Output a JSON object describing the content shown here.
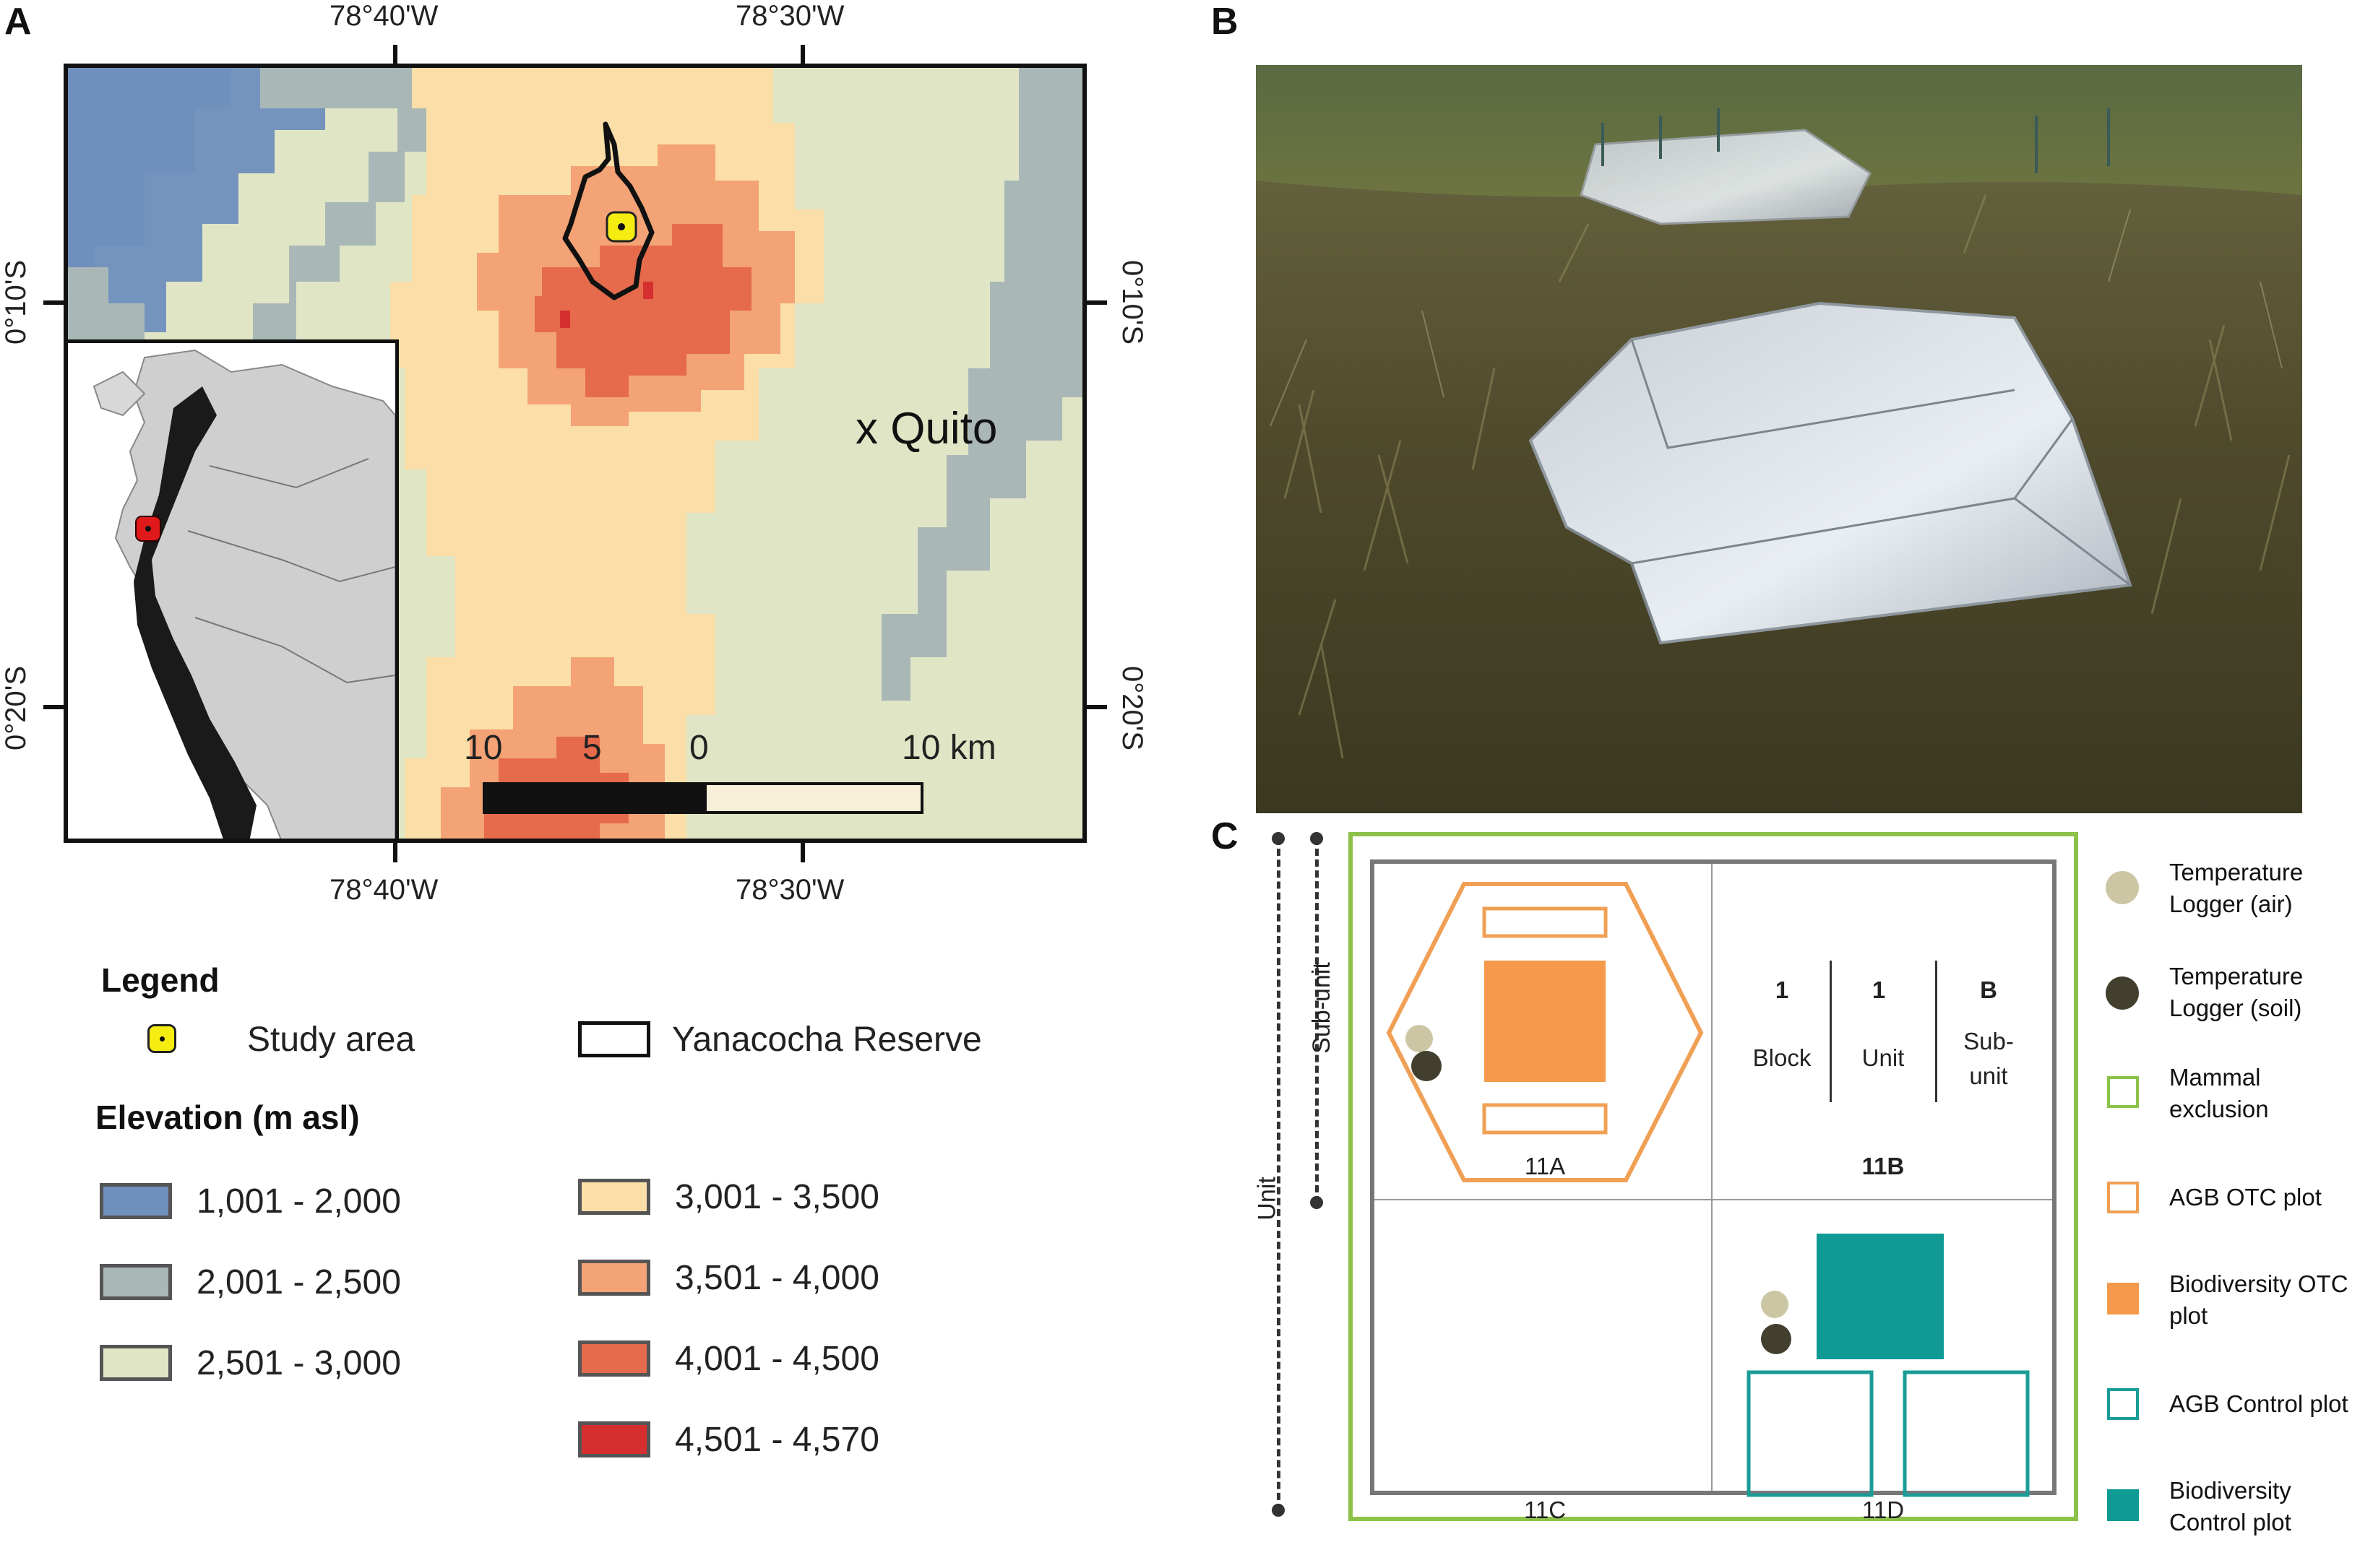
{
  "panels": {
    "a": "A",
    "b": "B",
    "c": "C"
  },
  "map": {
    "top_lon": [
      "78°40'W",
      "78°30'W"
    ],
    "bottom_lon": [
      "78°40'W",
      "78°30'W"
    ],
    "left_lat": [
      "0°10'S",
      "0°20'S"
    ],
    "right_lat": [
      "0°10'S",
      "0°20'S"
    ],
    "city": "x Quito",
    "scale": {
      "labels": [
        "10",
        "5",
        "0",
        "10 km"
      ]
    }
  },
  "legend": {
    "title": "Legend",
    "study_area": "Study area",
    "reserve": "Yanacocha Reserve",
    "elevation_title": "Elevation (m asl)",
    "elevation_classes": [
      {
        "label": "1,001 - 2,000",
        "color": "#6f8fbd"
      },
      {
        "label": "2,001 - 2,500",
        "color": "#a9b7b7"
      },
      {
        "label": "2,501 - 3,000",
        "color": "#e0e6c5"
      },
      {
        "label": "3,001 - 3,500",
        "color": "#fbdea8"
      },
      {
        "label": "3,501 - 4,000",
        "color": "#f3a375"
      },
      {
        "label": "4,001 - 4,500",
        "color": "#e56b4c"
      },
      {
        "label": "4,501 - 4,570",
        "color": "#d62f2f"
      }
    ]
  },
  "design": {
    "side_labels": {
      "unit": "Unit",
      "subunit": "Sub-unit"
    },
    "header": {
      "block_num": "1",
      "unit_num": "1",
      "sub_num": "B",
      "block": "Block",
      "unit": "Unit",
      "sub": "Sub-\nunit"
    },
    "cells": {
      "a": "11A",
      "b": "11B",
      "c": "11C",
      "d": "11D"
    },
    "legend": [
      {
        "label": "Temperature\nLogger (air)",
        "icon": "circle",
        "color": "#cdc6a5"
      },
      {
        "label": "Temperature\nLogger (soil)",
        "icon": "circle",
        "color": "#433f2e"
      },
      {
        "label": "Mammal\nexclusion",
        "icon": "outline-square",
        "color": "#8cc24a"
      },
      {
        "label": "AGB OTC plot",
        "icon": "outline-square",
        "color": "#f0a055"
      },
      {
        "label": "Biodiversity OTC\nplot",
        "icon": "filled-square",
        "color": "#f59a4a"
      },
      {
        "label": "AGB Control plot",
        "icon": "outline-square",
        "color": "#1a9c97"
      },
      {
        "label": "Biodiversity\nControl plot",
        "icon": "filled-square",
        "color": "#0f9a94"
      }
    ]
  }
}
